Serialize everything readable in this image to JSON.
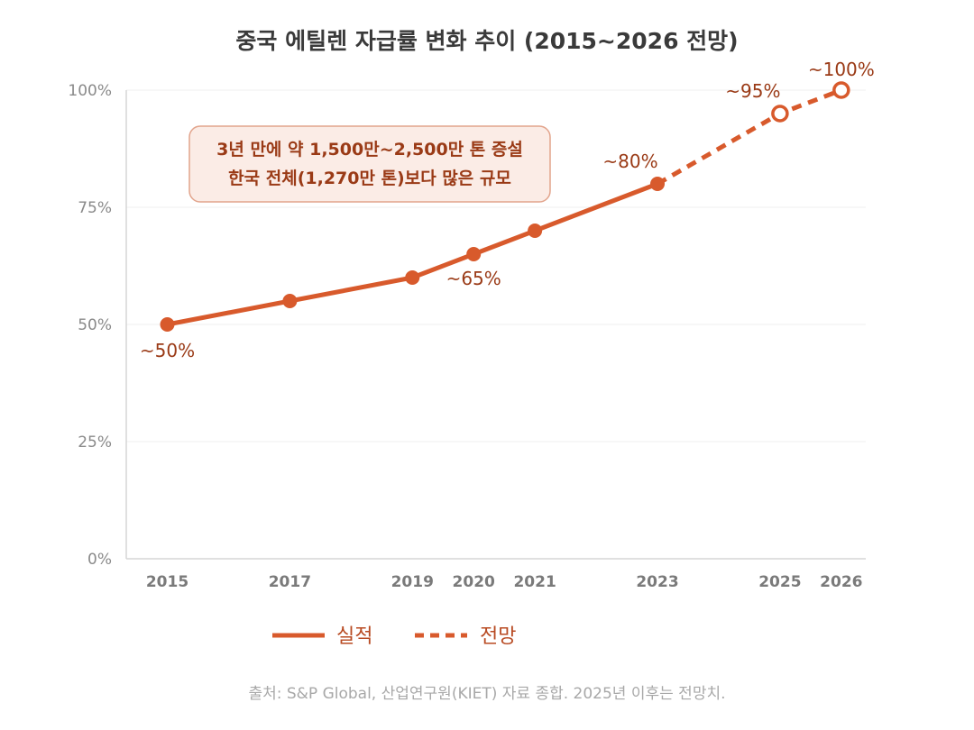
{
  "chart_data": {
    "type": "line",
    "title": "중국 에틸렌 자급률 변화 추이 (2015~2026 전망)",
    "xlabel": "",
    "ylabel": "",
    "x_ticks": [
      "2015",
      "2017",
      "2019",
      "2020",
      "2021",
      "2023",
      "2025",
      "2026"
    ],
    "y_ticks": [
      "100%",
      "75%",
      "50%",
      "25%",
      "0%"
    ],
    "ylim": [
      0,
      100
    ],
    "xlim": [
      2014.33,
      2026.4
    ],
    "series": [
      {
        "name": "실적",
        "style": "solid",
        "points": [
          {
            "x": 2015,
            "y": 50
          },
          {
            "x": 2017,
            "y": 55
          },
          {
            "x": 2019,
            "y": 60
          },
          {
            "x": 2020,
            "y": 65
          },
          {
            "x": 2021,
            "y": 70
          },
          {
            "x": 2023,
            "y": 80
          }
        ]
      },
      {
        "name": "전망",
        "style": "dashed",
        "points": [
          {
            "x": 2023,
            "y": 80
          },
          {
            "x": 2025,
            "y": 95
          },
          {
            "x": 2026,
            "y": 100
          }
        ]
      }
    ],
    "data_labels": [
      {
        "x": 2015,
        "y": 50,
        "text": "~50%",
        "placement": "below-left"
      },
      {
        "x": 2020,
        "y": 65,
        "text": "~65%",
        "placement": "below"
      },
      {
        "x": 2023,
        "y": 80,
        "text": "~80%",
        "placement": "above-left"
      },
      {
        "x": 2025,
        "y": 95,
        "text": "~95%",
        "placement": "above-left"
      },
      {
        "x": 2026,
        "y": 100,
        "text": "~100%",
        "placement": "above"
      }
    ],
    "annotation": {
      "lines": [
        "3년 만에 약 1,500만~2,500만 톤 증설",
        "한국 전체(1,270만 톤)보다 많은 규모"
      ],
      "placement": "top-left"
    },
    "legend": [
      {
        "label": "실적",
        "style": "solid"
      },
      {
        "label": "전망",
        "style": "dashed"
      }
    ],
    "legend_position": "bottom-center",
    "source": "출처: S&P Global, 산업연구원(KIET) 자료 종합. 2025년 이후는 전망치.",
    "grid": true,
    "colors": {
      "line": "#d85a2c",
      "label": "#9a3a16",
      "annotation_fill": "#fbece6",
      "annotation_border": "#e2a48c"
    }
  }
}
